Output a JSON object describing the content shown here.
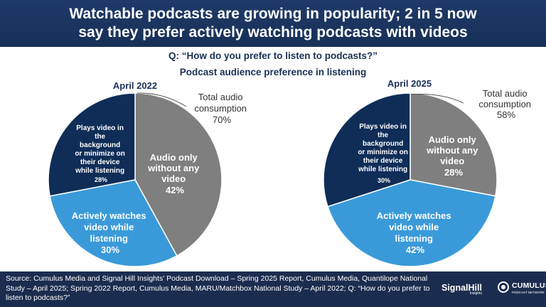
{
  "header": {
    "line1": "Watchable podcasts are growing in popularity; 2 in 5 now",
    "line2": "say they prefer actively watching podcasts with videos"
  },
  "question": "Q: “How do you prefer to listen to podcasts?”",
  "subtitle": "Podcast audience preference in listening",
  "chart_data": [
    {
      "type": "pie",
      "title": "April 2022",
      "slices": [
        {
          "label": "Audio only without any video",
          "value": 42,
          "value_label": "42%",
          "color": "#7f7f7f"
        },
        {
          "label": "Actively watches video while listening",
          "value": 30,
          "value_label": "30%",
          "color": "#3a9ad9"
        },
        {
          "label": "Plays video in the background or minimize on their device while listening",
          "value": 28,
          "value_label": "28%",
          "color": "#0f2d57"
        }
      ],
      "annotation": {
        "label": "Total audio consumption",
        "value": "70%"
      }
    },
    {
      "type": "pie",
      "title": "April 2025",
      "slices": [
        {
          "label": "Audio only without any video",
          "value": 28,
          "value_label": "28%",
          "color": "#7f7f7f"
        },
        {
          "label": "Actively watches video while listening",
          "value": 42,
          "value_label": "42%",
          "color": "#3a9ad9"
        },
        {
          "label": "Plays video in the background or minimize on their device while listening",
          "value": 30,
          "value_label": "30%",
          "color": "#0f2d57"
        }
      ],
      "annotation": {
        "label": "Total audio consumption",
        "value": "58%"
      }
    }
  ],
  "footer": {
    "source": "Source: Cumulus Media and Signal Hill Insights' Podcast Download – Spring 2025 Report, Cumulus Media, Quantilope National Study – April 2025; Spring 2022 Report, Cumulus Media, MARU/Matchbox National Study – April 2022; Q: “How do you prefer to listen to podcasts?”",
    "logo1": "SignalHill",
    "logo1_sub": "Insights",
    "logo2": "CUMULUS",
    "logo2_sub": "PODCAST NETWORK"
  }
}
